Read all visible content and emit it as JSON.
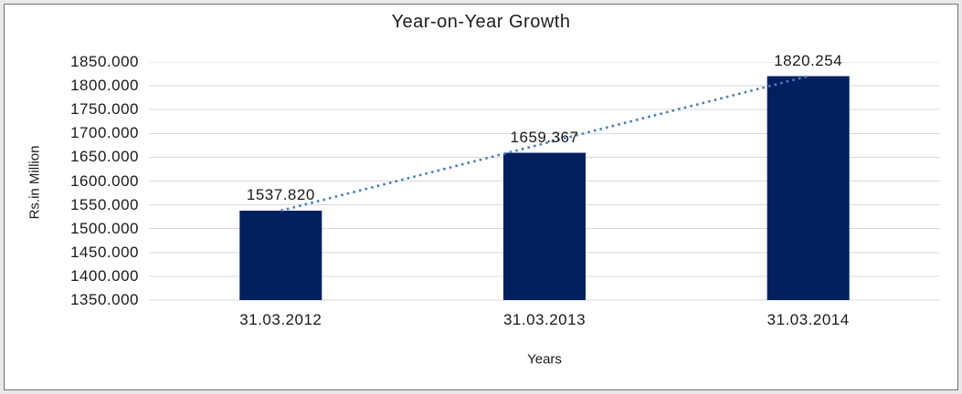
{
  "chart_data": {
    "type": "bar",
    "title": "Year-on-Year Growth",
    "xlabel": "Years",
    "ylabel": "Rs.in Million",
    "categories": [
      "31.03.2012",
      "31.03.2013",
      "31.03.2014"
    ],
    "values": [
      1537.82,
      1659.367,
      1820.254
    ],
    "data_labels": [
      "1537.820",
      "1659.367",
      "1820.254"
    ],
    "ylim": [
      1350,
      1850
    ],
    "ytick_step": 50,
    "ytick_labels": [
      "1850.000",
      "1800.000",
      "1750.000",
      "1700.000",
      "1650.000",
      "1600.000",
      "1550.000",
      "1500.000",
      "1450.000",
      "1400.000",
      "1350.000"
    ],
    "grid": true,
    "legend": "none",
    "trendline": {
      "type": "linear",
      "style": "dotted",
      "color": "#4a7ebb"
    },
    "colors": {
      "bar": "#002060",
      "gridline": "#d9d9d9",
      "text": "#1a1a1a",
      "plot_background": "#ffffff",
      "frame_border": "#707070",
      "page_background": "#e9e9e9"
    }
  }
}
